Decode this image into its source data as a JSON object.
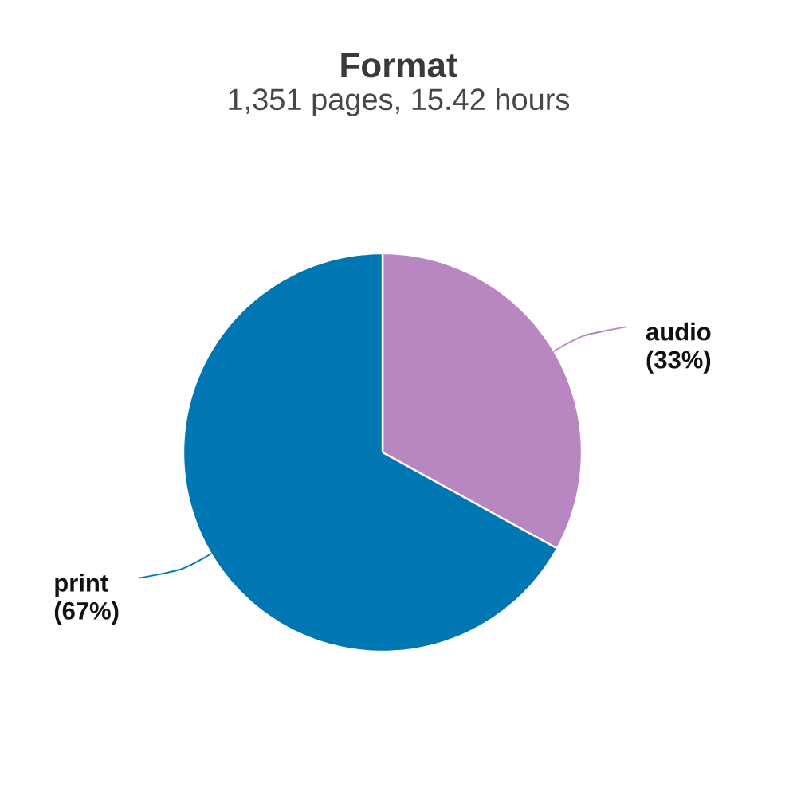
{
  "chart_data": {
    "type": "pie",
    "title": "Format",
    "subtitle": "1,351 pages, 15.42 hours",
    "categories": [
      "audio",
      "print"
    ],
    "values": [
      33,
      67
    ],
    "colors": [
      "#b886c1",
      "#0077b3"
    ],
    "value_labels": [
      "(33%)",
      "(67%)"
    ]
  }
}
